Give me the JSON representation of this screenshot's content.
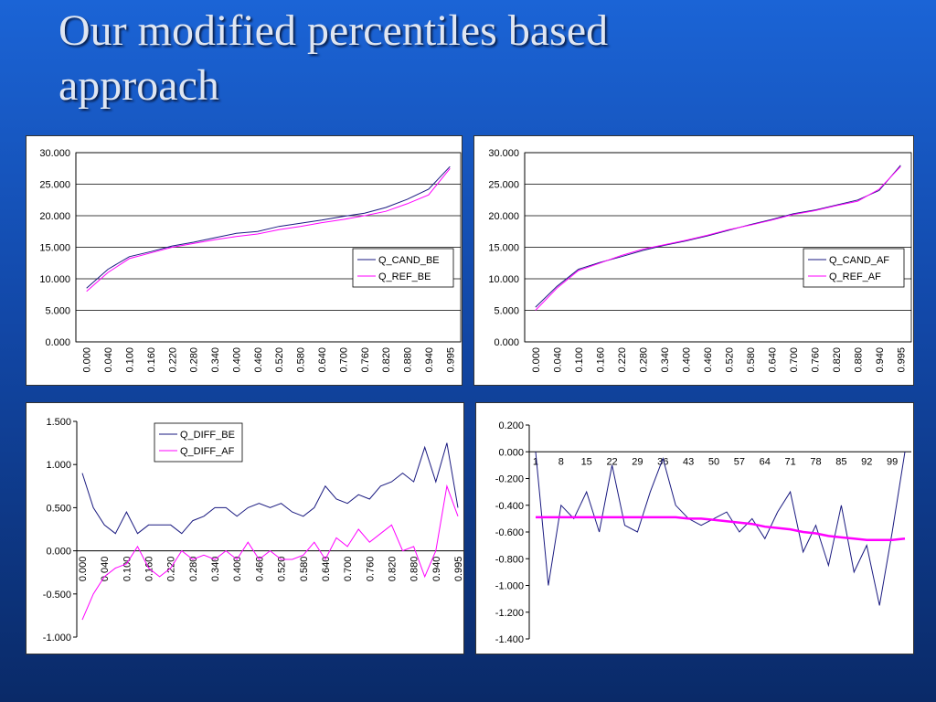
{
  "title": "Our modified percentiles based approach",
  "chart_data": [
    {
      "type": "line",
      "categories": [
        "0.000",
        "0.040",
        "0.100",
        "0.160",
        "0.220",
        "0.280",
        "0.340",
        "0.400",
        "0.460",
        "0.520",
        "0.580",
        "0.640",
        "0.700",
        "0.760",
        "0.820",
        "0.880",
        "0.940",
        "0.995"
      ],
      "series": [
        {
          "name": "Q_CAND_BE",
          "color": "#1a1a80",
          "values": [
            8.5,
            11.5,
            13.5,
            14.3,
            15.2,
            15.8,
            16.5,
            17.2,
            17.5,
            18.3,
            18.8,
            19.3,
            19.9,
            20.4,
            21.3,
            22.6,
            24.2,
            27.8
          ]
        },
        {
          "name": "Q_REF_BE",
          "color": "#ff00ff",
          "values": [
            8.0,
            11.0,
            13.2,
            14.1,
            15.0,
            15.6,
            16.2,
            16.7,
            17.1,
            17.8,
            18.3,
            18.9,
            19.4,
            20.0,
            20.7,
            21.9,
            23.3,
            27.5
          ]
        }
      ],
      "ylim": [
        0,
        30
      ],
      "yticks": [
        {
          "value": 0,
          "label": "0.000"
        },
        {
          "value": 5,
          "label": "5.000"
        },
        {
          "value": 10,
          "label": "10.000"
        },
        {
          "value": 15,
          "label": "15.000"
        },
        {
          "value": 20,
          "label": "20.000"
        },
        {
          "value": 25,
          "label": "25.000"
        },
        {
          "value": 30,
          "label": "30.000"
        }
      ],
      "grid": true,
      "legend": "right"
    },
    {
      "type": "line",
      "categories": [
        "0.000",
        "0.040",
        "0.100",
        "0.160",
        "0.220",
        "0.280",
        "0.340",
        "0.400",
        "0.460",
        "0.520",
        "0.580",
        "0.640",
        "0.700",
        "0.760",
        "0.820",
        "0.880",
        "0.940",
        "0.995"
      ],
      "series": [
        {
          "name": "Q_CAND_AF",
          "color": "#1a1a80",
          "values": [
            5.5,
            8.8,
            11.5,
            12.6,
            13.5,
            14.5,
            15.3,
            16.0,
            16.8,
            17.7,
            18.6,
            19.4,
            20.3,
            20.9,
            21.7,
            22.5,
            24.0,
            28.0
          ]
        },
        {
          "name": "Q_REF_AF",
          "color": "#ff00ff",
          "values": [
            5.0,
            8.5,
            11.3,
            12.5,
            13.7,
            14.7,
            15.4,
            16.1,
            16.9,
            17.8,
            18.5,
            19.3,
            20.2,
            20.8,
            21.6,
            22.3,
            24.2,
            27.8
          ]
        }
      ],
      "ylim": [
        0,
        30
      ],
      "yticks": [
        {
          "value": 0,
          "label": "0.000"
        },
        {
          "value": 5,
          "label": "5.000"
        },
        {
          "value": 10,
          "label": "10.000"
        },
        {
          "value": 15,
          "label": "15.000"
        },
        {
          "value": 20,
          "label": "20.000"
        },
        {
          "value": 25,
          "label": "25.000"
        },
        {
          "value": 30,
          "label": "30.000"
        }
      ],
      "grid": true,
      "legend": "right"
    },
    {
      "type": "line",
      "categories": [
        "0.000",
        null,
        "0.040",
        null,
        "0.100",
        null,
        "0.160",
        null,
        "0.220",
        null,
        "0.280",
        null,
        "0.340",
        null,
        "0.400",
        null,
        "0.460",
        null,
        "0.520",
        null,
        "0.580",
        null,
        "0.640",
        null,
        "0.700",
        null,
        "0.760",
        null,
        "0.820",
        null,
        "0.880",
        null,
        "0.940",
        null,
        "0.995"
      ],
      "series": [
        {
          "name": "Q_DIFF_BE",
          "color": "#1a1a80",
          "values": [
            0.9,
            0.5,
            0.3,
            0.2,
            0.45,
            0.2,
            0.3,
            0.3,
            0.3,
            0.2,
            0.35,
            0.4,
            0.5,
            0.5,
            0.4,
            0.5,
            0.55,
            0.5,
            0.55,
            0.45,
            0.4,
            0.5,
            0.75,
            0.6,
            0.55,
            0.65,
            0.6,
            0.75,
            0.8,
            0.9,
            0.8,
            1.2,
            0.8,
            1.25,
            0.5
          ]
        },
        {
          "name": "Q_DIFF_AF",
          "color": "#ff00ff",
          "values": [
            -0.8,
            -0.5,
            -0.3,
            -0.2,
            -0.15,
            0.05,
            -0.2,
            -0.3,
            -0.2,
            0,
            -0.1,
            -0.05,
            -0.1,
            0,
            -0.1,
            0.1,
            -0.1,
            0,
            -0.1,
            -0.1,
            -0.05,
            0.1,
            -0.1,
            0.15,
            0.05,
            0.25,
            0.1,
            0.2,
            0.3,
            0,
            0.05,
            -0.3,
            0,
            0.75,
            0.4
          ]
        }
      ],
      "ylim": [
        -1,
        1.5
      ],
      "yticks": [
        {
          "value": -1,
          "label": "-1.000"
        },
        {
          "value": -0.5,
          "label": "-0.500"
        },
        {
          "value": 0,
          "label": "0.000"
        },
        {
          "value": 0.5,
          "label": "0.500"
        },
        {
          "value": 1,
          "label": "1.000"
        },
        {
          "value": 1.5,
          "label": "1.500"
        }
      ],
      "grid": false,
      "legend": "top"
    },
    {
      "type": "line",
      "categories": [
        "1",
        null,
        "8",
        null,
        "15",
        null,
        "22",
        null,
        "29",
        null,
        "36",
        null,
        "43",
        null,
        "50",
        null,
        "57",
        null,
        "64",
        null,
        "71",
        null,
        "78",
        null,
        "85",
        null,
        "92",
        null,
        "99",
        null
      ],
      "series": [
        {
          "color": "#1a1a80",
          "values": [
            0,
            -1.0,
            -0.4,
            -0.5,
            -0.3,
            -0.6,
            -0.1,
            -0.55,
            -0.6,
            -0.3,
            -0.05,
            -0.4,
            -0.5,
            -0.55,
            -0.5,
            -0.45,
            -0.6,
            -0.5,
            -0.65,
            -0.45,
            -0.3,
            -0.75,
            -0.55,
            -0.85,
            -0.4,
            -0.9,
            -0.7,
            -1.15,
            -0.6,
            0
          ]
        },
        {
          "color": "#ff00ff",
          "values": [
            -0.49,
            -0.49,
            -0.49,
            -0.49,
            -0.49,
            -0.49,
            -0.49,
            -0.49,
            -0.49,
            -0.49,
            -0.49,
            -0.49,
            -0.5,
            -0.5,
            -0.51,
            -0.52,
            -0.53,
            -0.54,
            -0.56,
            -0.57,
            -0.58,
            -0.6,
            -0.61,
            -0.63,
            -0.64,
            -0.65,
            -0.66,
            -0.66,
            -0.66,
            -0.65
          ]
        }
      ],
      "ylim": [
        -1.4,
        0.2
      ],
      "yticks": [
        {
          "value": -1.4,
          "label": "-1.400"
        },
        {
          "value": -1.2,
          "label": "-1.200"
        },
        {
          "value": -1,
          "label": "-1.000"
        },
        {
          "value": -0.8,
          "label": "-0.800"
        },
        {
          "value": -0.6,
          "label": "-0.600"
        },
        {
          "value": -0.4,
          "label": "-0.400"
        },
        {
          "value": -0.2,
          "label": "-0.200"
        },
        {
          "value": 0,
          "label": "0.000"
        },
        {
          "value": 0.2,
          "label": "0.200"
        }
      ],
      "grid": false
    }
  ]
}
